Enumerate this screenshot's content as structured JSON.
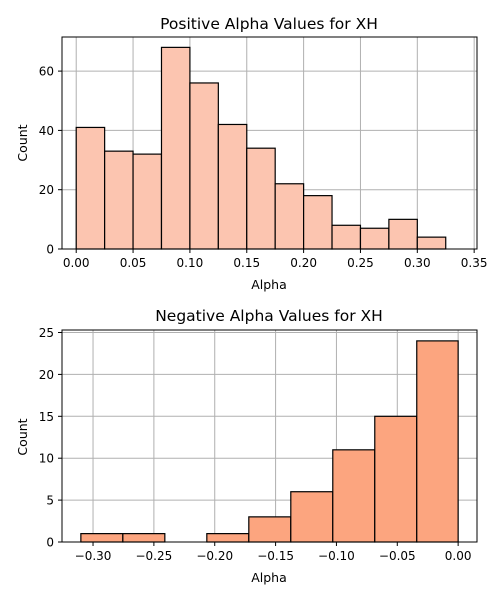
{
  "chart_data": [
    {
      "type": "bar",
      "title": "Positive Alpha Values for XH",
      "xlabel": "Alpha",
      "ylabel": "Count",
      "color": "#fcc5b0",
      "xlim": [
        -0.0125,
        0.3525
      ],
      "ylim": [
        0,
        71.5
      ],
      "grid": true,
      "x_ticks": [
        0.0,
        0.05,
        0.1,
        0.15,
        0.2,
        0.25,
        0.3,
        0.35
      ],
      "x_tick_labels": [
        "0.00",
        "0.05",
        "0.10",
        "0.15",
        "0.20",
        "0.25",
        "0.30",
        "0.35"
      ],
      "y_ticks": [
        0,
        20,
        40,
        60
      ],
      "y_tick_labels": [
        "0",
        "20",
        "40",
        "60"
      ],
      "bins": [
        {
          "start": 0.0,
          "end": 0.025,
          "count": 41
        },
        {
          "start": 0.025,
          "end": 0.05,
          "count": 33
        },
        {
          "start": 0.05,
          "end": 0.075,
          "count": 32
        },
        {
          "start": 0.075,
          "end": 0.1,
          "count": 68
        },
        {
          "start": 0.1,
          "end": 0.125,
          "count": 56
        },
        {
          "start": 0.125,
          "end": 0.15,
          "count": 42
        },
        {
          "start": 0.15,
          "end": 0.175,
          "count": 34
        },
        {
          "start": 0.175,
          "end": 0.2,
          "count": 22
        },
        {
          "start": 0.2,
          "end": 0.225,
          "count": 18
        },
        {
          "start": 0.225,
          "end": 0.25,
          "count": 8
        },
        {
          "start": 0.25,
          "end": 0.275,
          "count": 7
        },
        {
          "start": 0.275,
          "end": 0.3,
          "count": 10
        },
        {
          "start": 0.3,
          "end": 0.325,
          "count": 4
        }
      ]
    },
    {
      "type": "bar",
      "title": "Negative Alpha Values for XH",
      "xlabel": "Alpha",
      "ylabel": "Count",
      "color": "#fca57f",
      "xlim": [
        -0.3255,
        0.0155
      ],
      "ylim": [
        0,
        25.3
      ],
      "grid": true,
      "x_ticks": [
        -0.3,
        -0.25,
        -0.2,
        -0.15,
        -0.1,
        -0.05,
        0.0
      ],
      "x_tick_labels": [
        "−0.30",
        "−0.25",
        "−0.20",
        "−0.15",
        "−0.10",
        "−0.05",
        "0.00"
      ],
      "y_ticks": [
        0,
        5,
        10,
        15,
        20,
        25
      ],
      "y_tick_labels": [
        "0",
        "5",
        "10",
        "15",
        "20",
        "25"
      ],
      "bins": [
        {
          "start": -0.31,
          "end": -0.2755,
          "count": 1
        },
        {
          "start": -0.2755,
          "end": -0.241,
          "count": 1
        },
        {
          "start": -0.241,
          "end": -0.2065,
          "count": 0
        },
        {
          "start": -0.2065,
          "end": -0.172,
          "count": 1
        },
        {
          "start": -0.172,
          "end": -0.1375,
          "count": 3
        },
        {
          "start": -0.1375,
          "end": -0.103,
          "count": 6
        },
        {
          "start": -0.103,
          "end": -0.0685,
          "count": 11
        },
        {
          "start": -0.0685,
          "end": -0.034,
          "count": 15
        },
        {
          "start": -0.034,
          "end": 0.0,
          "count": 24
        }
      ]
    }
  ]
}
